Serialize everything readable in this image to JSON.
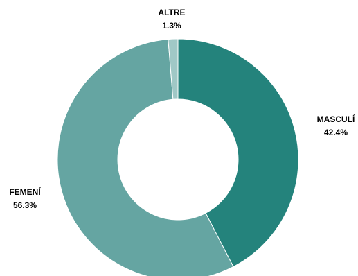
{
  "chart_data": {
    "type": "pie",
    "variant": "donut",
    "title": "",
    "categories": [
      "MASCULÍ",
      "FEMENÍ",
      "ALTRE"
    ],
    "values": [
      42.4,
      56.3,
      1.3
    ],
    "value_labels": [
      "42.4%",
      "56.3%",
      "1.3%"
    ],
    "unit": "%",
    "legend": "none",
    "colors": [
      "#24837c",
      "#65a5a2",
      "#a0c8c6"
    ],
    "start": "top, clockwise"
  }
}
